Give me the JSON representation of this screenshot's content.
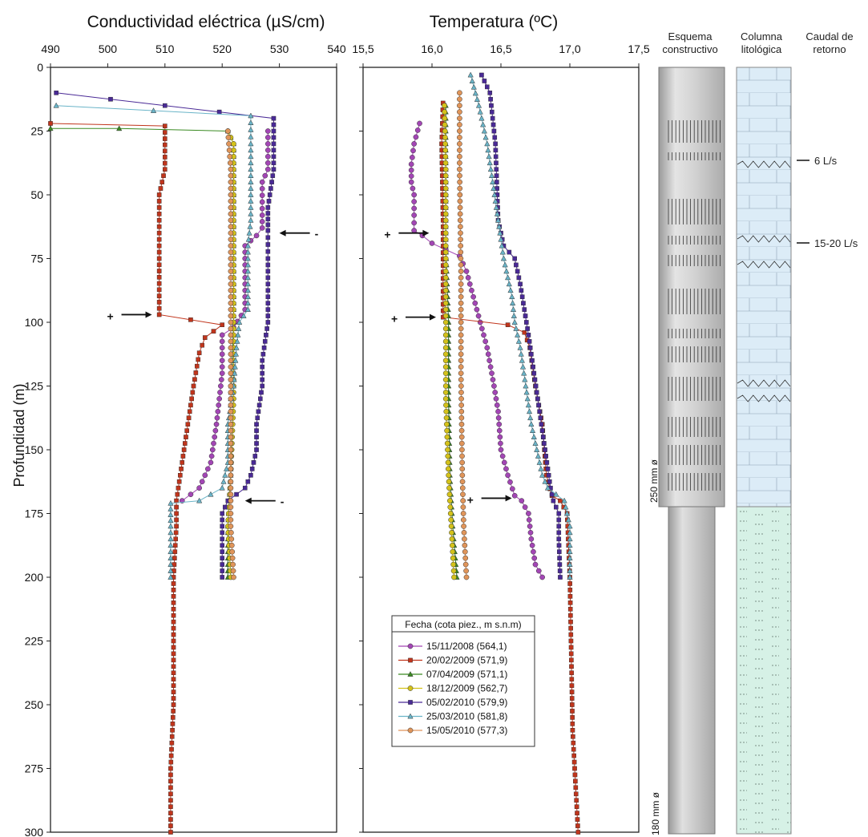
{
  "chart_data": [
    {
      "type": "line",
      "title": "Conductividad eléctrica (µS/cm)",
      "ylabel": "Profundidad (m)",
      "xlim": [
        490,
        540
      ],
      "ylim": [
        0,
        300
      ],
      "y_inverted": true,
      "x_ticks": [
        "490",
        "500",
        "510",
        "520",
        "530",
        "540"
      ],
      "y_ticks": [
        "0",
        "25",
        "50",
        "75",
        "100",
        "125",
        "150",
        "175",
        "200",
        "225",
        "250",
        "275",
        "300"
      ],
      "annotations": [
        {
          "text": "-",
          "x": 530,
          "y": 65
        },
        {
          "text": "+",
          "x": 501,
          "y": 97
        },
        {
          "text": "-",
          "x": 524,
          "y": 170
        }
      ],
      "series": [
        {
          "name": "15/11/2008 (564,1)",
          "points": [
            [
              528,
              25
            ],
            [
              528,
              40
            ],
            [
              527,
              45
            ],
            [
              527,
              58
            ],
            [
              527,
              63
            ],
            [
              526,
              66
            ],
            [
              524,
              70
            ],
            [
              524,
              80
            ],
            [
              524,
              95
            ],
            [
              522,
              102
            ],
            [
              520,
              105
            ],
            [
              520,
              120
            ],
            [
              519,
              140
            ],
            [
              518,
              155
            ],
            [
              516,
              165
            ],
            [
              513,
              170
            ]
          ]
        },
        {
          "name": "20/02/2009 (571,9)",
          "points": [
            [
              490,
              22
            ],
            [
              510,
              23
            ],
            [
              510,
              28
            ],
            [
              510,
              40
            ],
            [
              509,
              50
            ],
            [
              509,
              75
            ],
            [
              509,
              97
            ],
            [
              520,
              101
            ],
            [
              517,
              106
            ],
            [
              516,
              112
            ],
            [
              515,
              125
            ],
            [
              514,
              140
            ],
            [
              513,
              155
            ],
            [
              512,
              170
            ],
            [
              512,
              180
            ],
            [
              511.5,
              200
            ],
            [
              511.5,
              225
            ],
            [
              511.5,
              250
            ],
            [
              511,
              275
            ],
            [
              511,
              300
            ]
          ]
        },
        {
          "name": "07/04/2009 (571,1)",
          "points": [
            [
              490,
              24
            ],
            [
              502,
              24
            ],
            [
              521,
              25
            ],
            [
              522,
              30
            ],
            [
              522,
              60
            ],
            [
              522,
              100
            ],
            [
              521.5,
              130
            ],
            [
              521.5,
              160
            ],
            [
              521,
              180
            ],
            [
              521,
              200
            ]
          ]
        },
        {
          "name": "18/12/2009 (562,7)",
          "points": [
            [
              521,
              25
            ],
            [
              522,
              30
            ],
            [
              522,
              60
            ],
            [
              522,
              100
            ],
            [
              522,
              130
            ],
            [
              521.5,
              160
            ],
            [
              521,
              180
            ],
            [
              521.5,
              200
            ]
          ]
        },
        {
          "name": "05/02/2010 (579,9)",
          "points": [
            [
              491,
              10
            ],
            [
              529,
              20
            ],
            [
              529,
              25
            ],
            [
              529,
              40
            ],
            [
              528,
              55
            ],
            [
              528,
              64
            ],
            [
              528,
              75
            ],
            [
              528,
              100
            ],
            [
              527,
              115
            ],
            [
              527,
              125
            ],
            [
              526,
              140
            ],
            [
              526,
              150
            ],
            [
              525,
              160
            ],
            [
              524,
              165
            ],
            [
              521,
              170
            ],
            [
              520,
              175
            ],
            [
              520,
              200
            ]
          ]
        },
        {
          "name": "25/03/2010 (581,8)",
          "points": [
            [
              491,
              15
            ],
            [
              525,
              19
            ],
            [
              525,
              30
            ],
            [
              525,
              60
            ],
            [
              524.5,
              70
            ],
            [
              524.5,
              95
            ],
            [
              523,
              100
            ],
            [
              522.5,
              110
            ],
            [
              522,
              125
            ],
            [
              521,
              140
            ],
            [
              521,
              155
            ],
            [
              520,
              165
            ],
            [
              516,
              170
            ],
            [
              511,
              171
            ],
            [
              511,
              180
            ],
            [
              511,
              200
            ]
          ]
        },
        {
          "name": "15/05/2010 (577,3)",
          "points": [
            [
              521,
              25
            ],
            [
              521.5,
              40
            ],
            [
              521.5,
              70
            ],
            [
              521.5,
              100
            ],
            [
              521.5,
              130
            ],
            [
              521.5,
              160
            ],
            [
              521.5,
              180
            ],
            [
              522,
              200
            ]
          ]
        }
      ]
    },
    {
      "type": "line",
      "title": "Temperatura (ºC)",
      "ylabel": "Profundidad (m)",
      "xlim": [
        15.5,
        17.5
      ],
      "ylim": [
        0,
        300
      ],
      "y_inverted": true,
      "x_ticks": [
        "15,5",
        "16,0",
        "16,5",
        "17,0",
        "17,5"
      ],
      "annotations": [
        {
          "text": "+",
          "x": 15.7,
          "y": 65
        },
        {
          "text": "+",
          "x": 15.75,
          "y": 98
        },
        {
          "text": "+",
          "x": 16.3,
          "y": 169
        }
      ],
      "series": [
        {
          "name": "15/11/2008 (564,1)",
          "points": [
            [
              15.91,
              22
            ],
            [
              15.87,
              30
            ],
            [
              15.85,
              38
            ],
            [
              15.85,
              45
            ],
            [
              15.87,
              50
            ],
            [
              15.87,
              58
            ],
            [
              15.87,
              64
            ],
            [
              15.93,
              66
            ],
            [
              16.0,
              69
            ],
            [
              16.2,
              74
            ],
            [
              16.25,
              80
            ],
            [
              16.3,
              90
            ],
            [
              16.35,
              100
            ],
            [
              16.4,
              110
            ],
            [
              16.45,
              125
            ],
            [
              16.48,
              135
            ],
            [
              16.5,
              150
            ],
            [
              16.55,
              160
            ],
            [
              16.6,
              168
            ],
            [
              16.65,
              170
            ],
            [
              16.7,
              175
            ],
            [
              16.72,
              185
            ],
            [
              16.75,
              195
            ],
            [
              16.8,
              200
            ]
          ]
        },
        {
          "name": "20/02/2009 (571,9)",
          "points": [
            [
              16.08,
              14
            ],
            [
              16.07,
              30
            ],
            [
              16.08,
              60
            ],
            [
              16.08,
              98
            ],
            [
              16.55,
              101
            ],
            [
              16.67,
              104
            ],
            [
              16.71,
              110
            ],
            [
              16.75,
              125
            ],
            [
              16.8,
              140
            ],
            [
              16.83,
              160
            ],
            [
              16.87,
              168
            ],
            [
              16.93,
              170
            ],
            [
              16.98,
              175
            ],
            [
              17.0,
              200
            ],
            [
              17.01,
              230
            ],
            [
              17.02,
              260
            ],
            [
              17.05,
              290
            ],
            [
              17.06,
              300
            ]
          ]
        },
        {
          "name": "07/04/2009 (571,1)",
          "points": [
            [
              16.1,
              15
            ],
            [
              16.1,
              40
            ],
            [
              16.1,
              70
            ],
            [
              16.12,
              100
            ],
            [
              16.12,
              130
            ],
            [
              16.13,
              160
            ],
            [
              16.15,
              180
            ],
            [
              16.18,
              200
            ]
          ]
        },
        {
          "name": "18/12/2009 (562,7)",
          "points": [
            [
              16.09,
              15
            ],
            [
              16.1,
              40
            ],
            [
              16.1,
              70
            ],
            [
              16.1,
              100
            ],
            [
              16.1,
              130
            ],
            [
              16.12,
              160
            ],
            [
              16.14,
              180
            ],
            [
              16.16,
              200
            ]
          ]
        },
        {
          "name": "05/02/2010 (579,9)",
          "points": [
            [
              16.36,
              3
            ],
            [
              16.42,
              10
            ],
            [
              16.44,
              20
            ],
            [
              16.46,
              30
            ],
            [
              16.47,
              45
            ],
            [
              16.48,
              60
            ],
            [
              16.52,
              70
            ],
            [
              16.6,
              75
            ],
            [
              16.64,
              85
            ],
            [
              16.67,
              95
            ],
            [
              16.7,
              105
            ],
            [
              16.74,
              120
            ],
            [
              16.78,
              135
            ],
            [
              16.82,
              150
            ],
            [
              16.86,
              165
            ],
            [
              16.88,
              170
            ],
            [
              16.92,
              175
            ],
            [
              16.92,
              185
            ],
            [
              16.93,
              200
            ]
          ]
        },
        {
          "name": "25/03/2010 (581,8)",
          "points": [
            [
              16.28,
              3
            ],
            [
              16.34,
              15
            ],
            [
              16.4,
              30
            ],
            [
              16.44,
              45
            ],
            [
              16.48,
              60
            ],
            [
              16.52,
              75
            ],
            [
              16.58,
              90
            ],
            [
              16.6,
              100
            ],
            [
              16.64,
              110
            ],
            [
              16.68,
              125
            ],
            [
              16.72,
              140
            ],
            [
              16.76,
              150
            ],
            [
              16.8,
              160
            ],
            [
              16.84,
              165
            ],
            [
              16.96,
              170
            ],
            [
              17.0,
              180
            ],
            [
              17.0,
              200
            ]
          ]
        },
        {
          "name": "15/05/2010 (577,3)",
          "points": [
            [
              16.2,
              10
            ],
            [
              16.2,
              40
            ],
            [
              16.21,
              80
            ],
            [
              16.21,
              120
            ],
            [
              16.22,
              160
            ],
            [
              16.23,
              180
            ],
            [
              16.25,
              200
            ]
          ]
        }
      ]
    }
  ],
  "legend": {
    "title": "Fecha (cota piez., m s.n.m)",
    "placement": "bottom-center",
    "entries": [
      {
        "label": "15/11/2008 (564,1)",
        "color": "#a346b5",
        "marker": "circle"
      },
      {
        "label": "20/02/2009 (571,9)",
        "color": "#c1351c",
        "marker": "square"
      },
      {
        "label": "07/04/2009 (571,1)",
        "color": "#3a8a22",
        "marker": "triangle"
      },
      {
        "label": "18/12/2009 (562,7)",
        "color": "#d4c21a",
        "marker": "circle"
      },
      {
        "label": "05/02/2010 (579,9)",
        "color": "#4a2a96",
        "marker": "square"
      },
      {
        "label": "25/03/2010 (581,8)",
        "color": "#6ab4c8",
        "marker": "triangle"
      },
      {
        "label": "15/05/2010 (577,3)",
        "color": "#e0955a",
        "marker": "circle"
      }
    ]
  },
  "columns": {
    "esquema": {
      "title": [
        "Esquema",
        "constructivo"
      ],
      "diameters": [
        "250 mm ø",
        "180 mm ø"
      ]
    },
    "litologia": {
      "title": [
        "Columna",
        "litológica"
      ]
    },
    "caudal": {
      "title": [
        "Caudal de",
        "retorno"
      ],
      "labels": [
        "6 L/s",
        "15-20 L/s"
      ]
    }
  }
}
